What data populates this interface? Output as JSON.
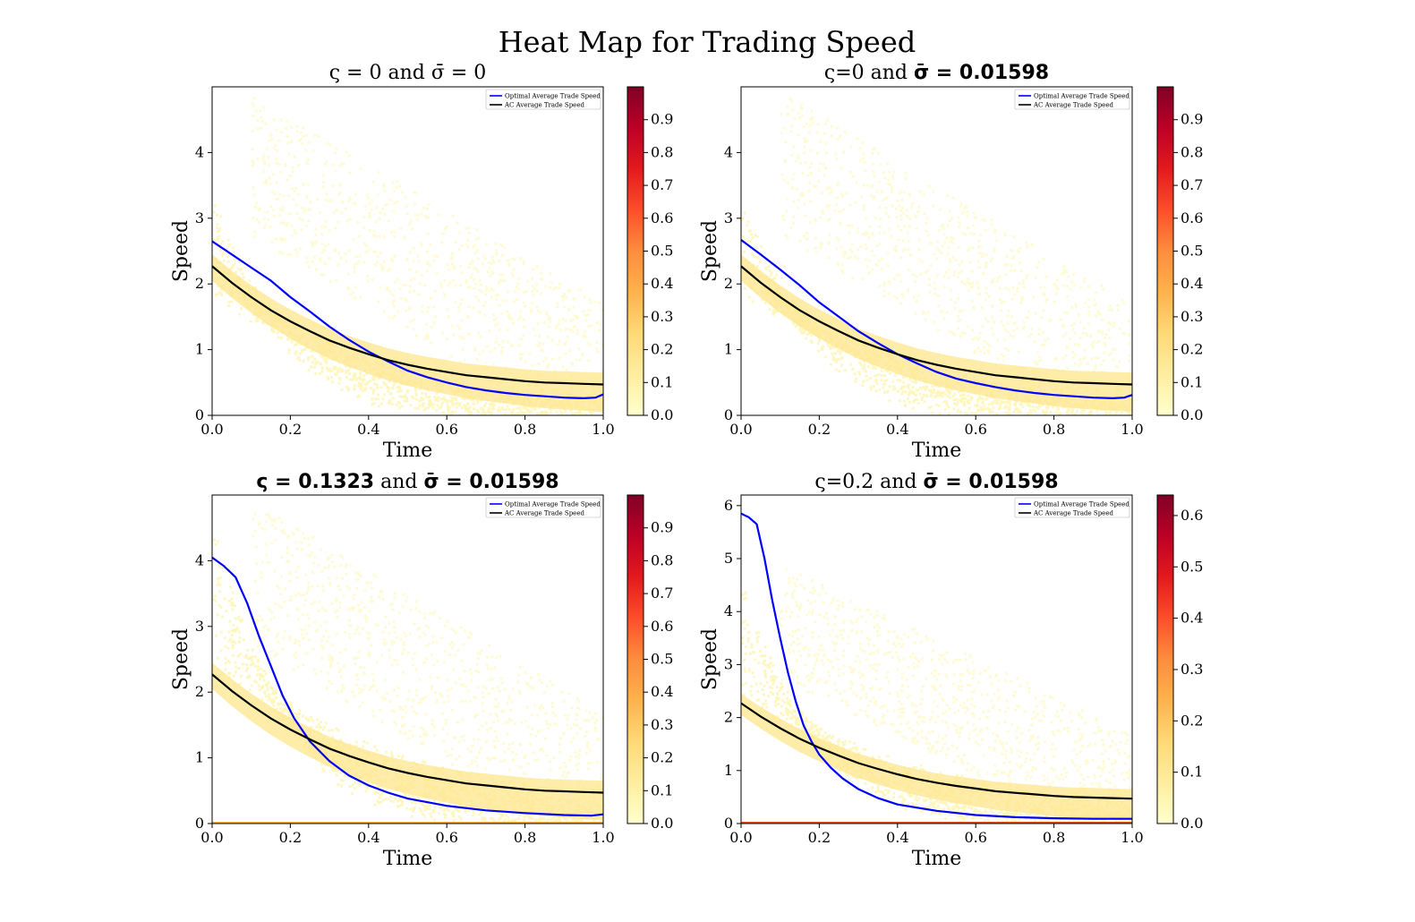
{
  "figure": {
    "title": "Heat Map for Trading Speed"
  },
  "chart_data": [
    {
      "type": "heatmap",
      "title": {
        "pre": "ς = 0 and ",
        "mid": "σ̄ = 0",
        "bold": "",
        "post": ""
      },
      "xlabel": "Time",
      "ylabel": "Speed",
      "xlim": [
        0,
        1
      ],
      "ylim": [
        0,
        5
      ],
      "xticks": [
        "0.0",
        "0.2",
        "0.4",
        "0.6",
        "0.8",
        "1.0"
      ],
      "yticks": [
        "0",
        "1",
        "2",
        "3",
        "4"
      ],
      "colorbar": {
        "range": [
          0,
          1
        ],
        "ticks": [
          "0.0",
          "0.1",
          "0.2",
          "0.3",
          "0.4",
          "0.5",
          "0.6",
          "0.7",
          "0.8",
          "0.9"
        ],
        "cmap": [
          "#ffffcc",
          "#ffeda0",
          "#fed976",
          "#feb24c",
          "#fd8d3c",
          "#fc4e2a",
          "#e31a1c",
          "#bd0026",
          "#800026"
        ]
      },
      "legend": {
        "placement": "top-right",
        "entries": [
          "Optimal Average Trade Speed",
          "AC Average Trade Speed"
        ]
      },
      "series": [
        {
          "name": "Optimal Average Trade Speed",
          "color": "#0000ff",
          "x": [
            0,
            0.05,
            0.1,
            0.15,
            0.2,
            0.25,
            0.3,
            0.35,
            0.4,
            0.45,
            0.5,
            0.55,
            0.6,
            0.65,
            0.7,
            0.75,
            0.8,
            0.85,
            0.9,
            0.95,
            0.98,
            1.0
          ],
          "y": [
            2.65,
            2.45,
            2.25,
            2.05,
            1.8,
            1.58,
            1.35,
            1.15,
            0.97,
            0.82,
            0.68,
            0.58,
            0.5,
            0.43,
            0.38,
            0.34,
            0.31,
            0.29,
            0.27,
            0.26,
            0.27,
            0.32
          ]
        },
        {
          "name": "AC Average Trade Speed",
          "color": "#000000",
          "x": [
            0,
            0.05,
            0.1,
            0.15,
            0.2,
            0.25,
            0.3,
            0.35,
            0.4,
            0.45,
            0.5,
            0.55,
            0.6,
            0.65,
            0.7,
            0.75,
            0.8,
            0.85,
            0.9,
            0.95,
            1.0
          ],
          "y": [
            2.27,
            2.02,
            1.8,
            1.6,
            1.43,
            1.28,
            1.14,
            1.03,
            0.93,
            0.84,
            0.77,
            0.71,
            0.66,
            0.61,
            0.58,
            0.55,
            0.52,
            0.5,
            0.49,
            0.48,
            0.47
          ]
        }
      ]
    },
    {
      "type": "heatmap",
      "title": {
        "pre": "ς=0 and ",
        "mid": "",
        "bold": "σ̄ = 0.01598",
        "post": ""
      },
      "xlabel": "Time",
      "ylabel": "Speed",
      "xlim": [
        0,
        1
      ],
      "ylim": [
        0,
        5
      ],
      "xticks": [
        "0.0",
        "0.2",
        "0.4",
        "0.6",
        "0.8",
        "1.0"
      ],
      "yticks": [
        "0",
        "1",
        "2",
        "3",
        "4"
      ],
      "colorbar": {
        "range": [
          0,
          1
        ],
        "ticks": [
          "0.0",
          "0.1",
          "0.2",
          "0.3",
          "0.4",
          "0.5",
          "0.6",
          "0.7",
          "0.8",
          "0.9"
        ],
        "cmap": [
          "#ffffcc",
          "#ffeda0",
          "#fed976",
          "#feb24c",
          "#fd8d3c",
          "#fc4e2a",
          "#e31a1c",
          "#bd0026",
          "#800026"
        ]
      },
      "legend": {
        "placement": "top-right",
        "entries": [
          "Optimal Average Trade Speed",
          "AC Average Trade Speed"
        ]
      },
      "series": [
        {
          "name": "Optimal Average Trade Speed",
          "color": "#0000ff",
          "x": [
            0,
            0.05,
            0.1,
            0.15,
            0.2,
            0.25,
            0.3,
            0.35,
            0.4,
            0.45,
            0.5,
            0.55,
            0.6,
            0.65,
            0.7,
            0.75,
            0.8,
            0.85,
            0.9,
            0.95,
            0.98,
            1.0
          ],
          "y": [
            2.67,
            2.45,
            2.22,
            1.98,
            1.72,
            1.5,
            1.28,
            1.1,
            0.93,
            0.79,
            0.66,
            0.56,
            0.49,
            0.43,
            0.38,
            0.34,
            0.31,
            0.29,
            0.27,
            0.26,
            0.27,
            0.31
          ]
        },
        {
          "name": "AC Average Trade Speed",
          "color": "#000000",
          "x": [
            0,
            0.05,
            0.1,
            0.15,
            0.2,
            0.25,
            0.3,
            0.35,
            0.4,
            0.45,
            0.5,
            0.55,
            0.6,
            0.65,
            0.7,
            0.75,
            0.8,
            0.85,
            0.9,
            0.95,
            1.0
          ],
          "y": [
            2.27,
            2.02,
            1.8,
            1.6,
            1.43,
            1.28,
            1.14,
            1.03,
            0.93,
            0.84,
            0.77,
            0.71,
            0.66,
            0.61,
            0.58,
            0.55,
            0.52,
            0.5,
            0.49,
            0.48,
            0.47
          ]
        }
      ]
    },
    {
      "type": "heatmap",
      "title": {
        "pre": "",
        "mid": "",
        "bold": "ς = 0.1323",
        "post": " and ",
        "bold2": "σ̄ = 0.01598"
      },
      "xlabel": "Time",
      "ylabel": "Speed",
      "xlim": [
        0,
        1
      ],
      "ylim": [
        0,
        5
      ],
      "xticks": [
        "0.0",
        "0.2",
        "0.4",
        "0.6",
        "0.8",
        "1.0"
      ],
      "yticks": [
        "0",
        "1",
        "2",
        "3",
        "4"
      ],
      "colorbar": {
        "range": [
          0,
          1
        ],
        "ticks": [
          "0.0",
          "0.1",
          "0.2",
          "0.3",
          "0.4",
          "0.5",
          "0.6",
          "0.7",
          "0.8",
          "0.9"
        ],
        "cmap": [
          "#ffffcc",
          "#ffeda0",
          "#fed976",
          "#feb24c",
          "#fd8d3c",
          "#fc4e2a",
          "#e31a1c",
          "#bd0026",
          "#800026"
        ]
      },
      "legend": {
        "placement": "top-right",
        "entries": [
          "Optimal Average Trade Speed",
          "AC Average Trade Speed"
        ]
      },
      "series": [
        {
          "name": "Optimal Average Trade Speed",
          "color": "#0000ff",
          "x": [
            0,
            0.03,
            0.06,
            0.09,
            0.12,
            0.15,
            0.18,
            0.21,
            0.25,
            0.3,
            0.35,
            0.4,
            0.45,
            0.5,
            0.6,
            0.7,
            0.8,
            0.9,
            0.97,
            1.0
          ],
          "y": [
            4.05,
            3.92,
            3.75,
            3.35,
            2.85,
            2.4,
            1.95,
            1.6,
            1.25,
            0.95,
            0.73,
            0.58,
            0.47,
            0.38,
            0.27,
            0.2,
            0.16,
            0.13,
            0.12,
            0.14
          ]
        },
        {
          "name": "AC Average Trade Speed",
          "color": "#000000",
          "x": [
            0,
            0.05,
            0.1,
            0.15,
            0.2,
            0.25,
            0.3,
            0.35,
            0.4,
            0.45,
            0.5,
            0.55,
            0.6,
            0.65,
            0.7,
            0.75,
            0.8,
            0.85,
            0.9,
            0.95,
            1.0
          ],
          "y": [
            2.27,
            2.02,
            1.8,
            1.6,
            1.43,
            1.28,
            1.14,
            1.03,
            0.93,
            0.84,
            0.77,
            0.71,
            0.66,
            0.61,
            0.58,
            0.55,
            0.52,
            0.5,
            0.49,
            0.48,
            0.47
          ]
        }
      ]
    },
    {
      "type": "heatmap",
      "title": {
        "pre": "ς=0.2 and ",
        "mid": "",
        "bold": "σ̄ = 0.01598",
        "post": ""
      },
      "xlabel": "Time",
      "ylabel": "Speed",
      "xlim": [
        0,
        1
      ],
      "ylim": [
        0,
        6.2
      ],
      "xticks": [
        "0.0",
        "0.2",
        "0.4",
        "0.6",
        "0.8",
        "1.0"
      ],
      "yticks": [
        "0",
        "1",
        "2",
        "3",
        "4",
        "5",
        "6"
      ],
      "colorbar": {
        "range": [
          0,
          0.64
        ],
        "ticks": [
          "0.0",
          "0.1",
          "0.2",
          "0.3",
          "0.4",
          "0.5",
          "0.6"
        ],
        "cmap": [
          "#ffffcc",
          "#ffeda0",
          "#fed976",
          "#feb24c",
          "#fd8d3c",
          "#fc4e2a",
          "#e31a1c",
          "#bd0026",
          "#800026"
        ]
      },
      "legend": {
        "placement": "top-right",
        "entries": [
          "Optimal Average Trade Speed",
          "AC Average Trade Speed"
        ]
      },
      "series": [
        {
          "name": "Optimal Average Trade Speed",
          "color": "#0000ff",
          "x": [
            0,
            0.02,
            0.04,
            0.06,
            0.08,
            0.1,
            0.12,
            0.14,
            0.16,
            0.18,
            0.2,
            0.23,
            0.26,
            0.3,
            0.35,
            0.4,
            0.5,
            0.6,
            0.7,
            0.8,
            0.9,
            1.0
          ],
          "y": [
            5.85,
            5.78,
            5.65,
            5.0,
            4.2,
            3.5,
            2.85,
            2.3,
            1.85,
            1.55,
            1.3,
            1.05,
            0.85,
            0.65,
            0.48,
            0.36,
            0.24,
            0.16,
            0.12,
            0.1,
            0.09,
            0.09
          ]
        },
        {
          "name": "AC Average Trade Speed",
          "color": "#000000",
          "x": [
            0,
            0.05,
            0.1,
            0.15,
            0.2,
            0.25,
            0.3,
            0.35,
            0.4,
            0.45,
            0.5,
            0.55,
            0.6,
            0.65,
            0.7,
            0.75,
            0.8,
            0.85,
            0.9,
            0.95,
            1.0
          ],
          "y": [
            2.27,
            2.02,
            1.8,
            1.6,
            1.43,
            1.28,
            1.14,
            1.03,
            0.93,
            0.84,
            0.77,
            0.71,
            0.66,
            0.61,
            0.58,
            0.55,
            0.52,
            0.5,
            0.49,
            0.48,
            0.47
          ]
        }
      ]
    }
  ]
}
